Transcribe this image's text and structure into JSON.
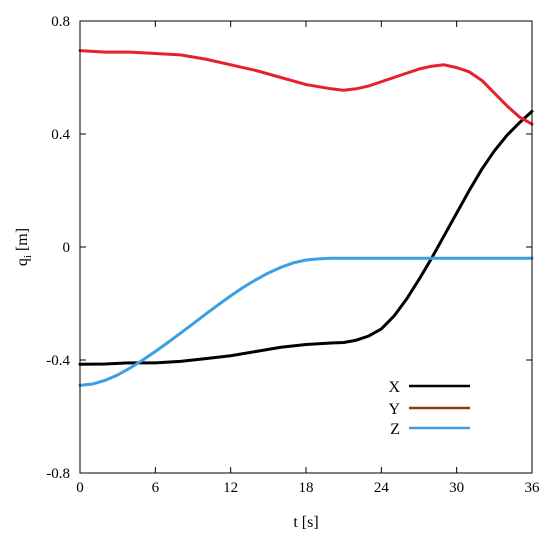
{
  "chart_data": {
    "type": "line",
    "title": "",
    "xlabel": "t [s]",
    "ylabel": "q",
    "ylabel_sub": "i",
    "ylabel_unit": " [m]",
    "xlim": [
      0,
      36
    ],
    "ylim": [
      -0.8,
      0.8
    ],
    "xticks": [
      0,
      6,
      12,
      18,
      24,
      30,
      36
    ],
    "yticks": [
      -0.8,
      -0.4,
      0,
      0.4,
      0.8
    ],
    "xtick_labels": [
      "0",
      "6",
      "12",
      "18",
      "24",
      "30",
      "36"
    ],
    "ytick_labels": [
      "-0.8",
      "-0.4",
      "0",
      "0.4",
      "0.8"
    ],
    "grid": false,
    "legend_position": "bottom-right",
    "legend": [
      {
        "label": "X",
        "color": "#000000"
      },
      {
        "label": "Y",
        "color": "#8B3A1A"
      },
      {
        "label": "Z",
        "color": "#3B9FE0"
      }
    ],
    "series": [
      {
        "color": "#000000",
        "x": [
          0,
          2,
          4,
          6,
          8,
          10,
          12,
          14,
          16,
          18,
          20,
          21,
          22,
          23,
          24,
          25,
          26,
          27,
          28,
          29,
          30,
          31,
          32,
          33,
          34,
          35,
          36
        ],
        "y": [
          -0.415,
          -0.414,
          -0.41,
          -0.41,
          -0.405,
          -0.395,
          -0.385,
          -0.37,
          -0.355,
          -0.345,
          -0.34,
          -0.338,
          -0.33,
          -0.315,
          -0.29,
          -0.245,
          -0.185,
          -0.115,
          -0.04,
          0.04,
          0.12,
          0.2,
          0.275,
          0.34,
          0.395,
          0.44,
          0.48
        ]
      },
      {
        "color": "#E8202A",
        "x": [
          0,
          2,
          4,
          6,
          8,
          10,
          12,
          14,
          16,
          18,
          20,
          21,
          22,
          23,
          24,
          25,
          26,
          27,
          28,
          29,
          30,
          31,
          32,
          33,
          34,
          35,
          36
        ],
        "y": [
          0.695,
          0.69,
          0.69,
          0.685,
          0.68,
          0.665,
          0.645,
          0.625,
          0.6,
          0.575,
          0.56,
          0.555,
          0.56,
          0.57,
          0.585,
          0.6,
          0.615,
          0.63,
          0.64,
          0.645,
          0.635,
          0.62,
          0.59,
          0.545,
          0.5,
          0.46,
          0.435
        ]
      },
      {
        "color": "#3B9FE0",
        "x": [
          0,
          1,
          2,
          3,
          4,
          5,
          6,
          7,
          8,
          9,
          10,
          11,
          12,
          13,
          14,
          15,
          16,
          17,
          18,
          19,
          20,
          20.5,
          21,
          24,
          28,
          32,
          36
        ],
        "y": [
          -0.49,
          -0.485,
          -0.472,
          -0.453,
          -0.428,
          -0.4,
          -0.37,
          -0.338,
          -0.305,
          -0.272,
          -0.238,
          -0.205,
          -0.173,
          -0.143,
          -0.116,
          -0.092,
          -0.072,
          -0.056,
          -0.046,
          -0.042,
          -0.04,
          -0.04,
          -0.04,
          -0.04,
          -0.04,
          -0.04,
          -0.04
        ]
      }
    ]
  }
}
